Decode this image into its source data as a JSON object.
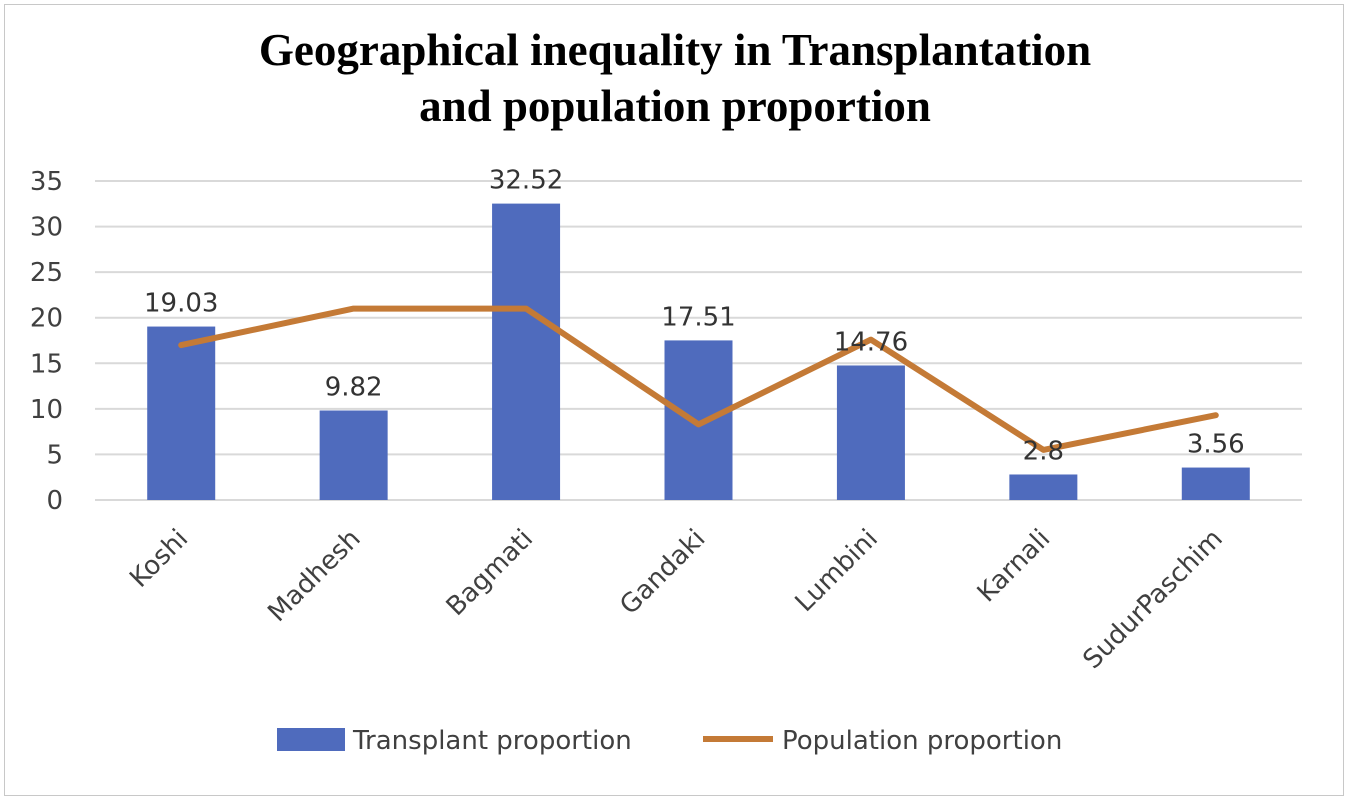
{
  "chart_data": {
    "type": "bar",
    "title_lines": [
      "Geographical inequality in Transplantation",
      "and population proportion"
    ],
    "categories": [
      "Koshi",
      "Madhesh",
      "Bagmati",
      "Gandaki",
      "Lumbini",
      "Karnali",
      "SudurPaschim"
    ],
    "series": [
      {
        "name": "Transplant proportion",
        "kind": "bar",
        "color": "#4f6bbd",
        "values": [
          19.03,
          9.82,
          32.52,
          17.51,
          14.76,
          2.8,
          3.56
        ],
        "data_labels": [
          "19.03",
          "9.82",
          "32.52",
          "17.51",
          "14.76",
          "2.8",
          "3.56"
        ]
      },
      {
        "name": "Population proportion",
        "kind": "line",
        "color": "#c47a36",
        "values": [
          17.0,
          21.0,
          21.0,
          8.3,
          17.6,
          5.5,
          9.3
        ]
      }
    ],
    "ylim": [
      0,
      35
    ],
    "yticks": [
      0,
      5,
      10,
      15,
      20,
      25,
      30,
      35
    ],
    "grid": true,
    "legend_position": "bottom"
  }
}
